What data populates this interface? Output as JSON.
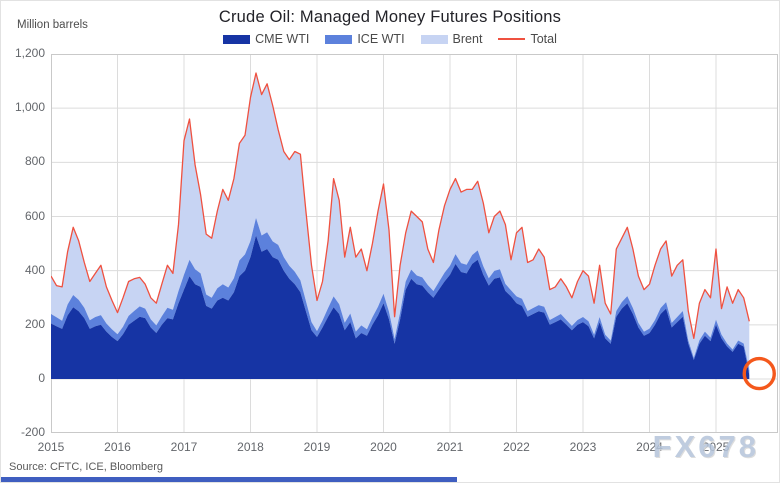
{
  "header": {
    "title": "Crude Oil: Managed Money Futures Positions",
    "y_axis_unit_label": "Million barrels"
  },
  "legend": {
    "items": [
      {
        "label": "CME WTI",
        "color": "#1634a4",
        "type": "swatch"
      },
      {
        "label": "ICE WTI",
        "color": "#5c81dc",
        "type": "swatch"
      },
      {
        "label": "Brent",
        "color": "#c7d4f3",
        "type": "swatch"
      },
      {
        "label": "Total",
        "color": "#ef5140",
        "type": "line"
      }
    ]
  },
  "source": {
    "text": "Source: CFTC, ICE, Bloomberg"
  },
  "watermark": {
    "text": "FX678"
  },
  "annotation": {
    "shape": "circle",
    "color": "#f4581c",
    "target_series": "CME WTI",
    "target_month": "2025-07",
    "target_value": 15
  },
  "accent": {
    "bottom_bar_color": "#3f5ec0"
  },
  "chart_data": {
    "type": "area",
    "stacked": true,
    "title": "Crude Oil: Managed Money Futures Positions",
    "ylabel": "Million barrels",
    "ylim": [
      -200,
      1200
    ],
    "grid": true,
    "legend_position": "top",
    "x_unit": "month",
    "x_start": "2015-01",
    "x_tick_years": [
      2015,
      2016,
      2017,
      2018,
      2019,
      2020,
      2021,
      2022,
      2023,
      2024,
      2025
    ],
    "y_ticks": [
      {
        "v": -200,
        "label": "-200"
      },
      {
        "v": 0,
        "label": "0"
      },
      {
        "v": 200,
        "label": "200"
      },
      {
        "v": 400,
        "label": "400"
      },
      {
        "v": 600,
        "label": "600"
      },
      {
        "v": 800,
        "label": "800"
      },
      {
        "v": 1000,
        "label": "1,000"
      },
      {
        "v": 1200,
        "label": "1,200"
      }
    ],
    "series": [
      {
        "name": "CME WTI",
        "role": "area",
        "color": "#1634a4",
        "values": [
          205,
          195,
          185,
          235,
          265,
          250,
          225,
          185,
          195,
          200,
          175,
          155,
          140,
          165,
          200,
          215,
          230,
          225,
          190,
          170,
          200,
          225,
          220,
          280,
          330,
          380,
          350,
          340,
          270,
          260,
          290,
          300,
          290,
          320,
          380,
          400,
          450,
          530,
          470,
          480,
          450,
          440,
          400,
          370,
          350,
          320,
          250,
          180,
          155,
          190,
          230,
          265,
          240,
          180,
          210,
          150,
          170,
          160,
          200,
          235,
          280,
          220,
          130,
          220,
          330,
          370,
          350,
          345,
          320,
          300,
          330,
          360,
          385,
          425,
          395,
          390,
          425,
          440,
          385,
          345,
          370,
          375,
          325,
          305,
          280,
          270,
          230,
          240,
          250,
          245,
          200,
          210,
          220,
          200,
          180,
          200,
          210,
          195,
          150,
          210,
          150,
          130,
          230,
          260,
          280,
          240,
          190,
          160,
          170,
          200,
          240,
          260,
          190,
          210,
          230,
          130,
          70,
          130,
          160,
          140,
          200,
          150,
          120,
          100,
          130,
          120,
          15
        ]
      },
      {
        "name": "ICE WTI",
        "role": "area",
        "color": "#5c81dc",
        "values": [
          35,
          33,
          30,
          40,
          45,
          42,
          38,
          32,
          34,
          36,
          30,
          28,
          25,
          28,
          33,
          36,
          38,
          35,
          30,
          28,
          32,
          38,
          36,
          45,
          55,
          60,
          55,
          50,
          42,
          40,
          45,
          50,
          48,
          52,
          58,
          60,
          60,
          65,
          60,
          62,
          58,
          55,
          50,
          48,
          46,
          44,
          38,
          30,
          22,
          26,
          32,
          40,
          36,
          28,
          32,
          25,
          28,
          24,
          28,
          32,
          35,
          28,
          18,
          25,
          30,
          34,
          32,
          30,
          27,
          25,
          28,
          32,
          33,
          36,
          33,
          32,
          33,
          35,
          31,
          27,
          29,
          30,
          26,
          23,
          25,
          26,
          21,
          22,
          23,
          22,
          18,
          19,
          20,
          18,
          16,
          18,
          19,
          18,
          14,
          19,
          14,
          12,
          21,
          24,
          26,
          22,
          17,
          15,
          16,
          18,
          22,
          24,
          17,
          19,
          21,
          12,
          8,
          13,
          15,
          13,
          19,
          14,
          11,
          9,
          12,
          11,
          18
        ]
      },
      {
        "name": "Brent",
        "role": "area",
        "color": "#c7d4f3",
        "values": [
          140,
          117,
          125,
          195,
          250,
          218,
          167,
          143,
          161,
          184,
          135,
          107,
          80,
          107,
          127,
          119,
          107,
          90,
          80,
          82,
          118,
          157,
          134,
          245,
          495,
          520,
          385,
          290,
          223,
          220,
          285,
          350,
          322,
          368,
          432,
          440,
          530,
          535,
          520,
          548,
          502,
          425,
          390,
          392,
          444,
          466,
          332,
          210,
          113,
          144,
          248,
          435,
          384,
          242,
          318,
          275,
          282,
          216,
          272,
          353,
          405,
          302,
          82,
          175,
          180,
          216,
          218,
          205,
          133,
          105,
          192,
          248,
          282,
          279,
          262,
          278,
          242,
          255,
          234,
          168,
          201,
          215,
          219,
          112,
          235,
          264,
          179,
          178,
          207,
          183,
          112,
          111,
          130,
          122,
          104,
          142,
          171,
          167,
          116,
          191,
          116,
          98,
          229,
          236,
          254,
          218,
          173,
          155,
          164,
          202,
          218,
          226,
          173,
          191,
          189,
          108,
          72,
          137,
          155,
          147,
          261,
          96,
          209,
          171,
          188,
          169,
          180
        ]
      },
      {
        "name": "Total",
        "role": "line",
        "color": "#ef5140",
        "values": [
          380,
          345,
          340,
          470,
          560,
          510,
          430,
          360,
          390,
          420,
          340,
          290,
          245,
          300,
          360,
          370,
          375,
          350,
          300,
          280,
          350,
          420,
          390,
          570,
          880,
          960,
          790,
          680,
          535,
          520,
          620,
          700,
          660,
          740,
          870,
          900,
          1040,
          1130,
          1050,
          1090,
          1010,
          920,
          840,
          810,
          840,
          830,
          620,
          420,
          290,
          360,
          510,
          740,
          660,
          450,
          560,
          450,
          480,
          400,
          500,
          620,
          720,
          550,
          230,
          420,
          540,
          620,
          600,
          580,
          480,
          430,
          550,
          640,
          700,
          740,
          690,
          700,
          700,
          730,
          650,
          540,
          600,
          620,
          570,
          440,
          540,
          560,
          430,
          440,
          480,
          450,
          330,
          340,
          370,
          340,
          300,
          360,
          400,
          380,
          280,
          420,
          280,
          240,
          480,
          520,
          560,
          480,
          380,
          330,
          350,
          420,
          480,
          510,
          380,
          420,
          440,
          250,
          150,
          280,
          330,
          300,
          480,
          260,
          340,
          280,
          330,
          300,
          213
        ]
      }
    ]
  }
}
